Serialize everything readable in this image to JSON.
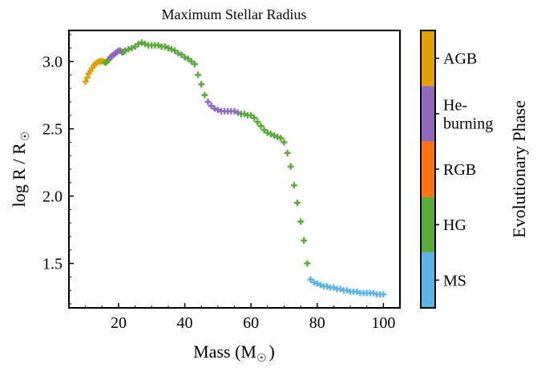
{
  "chart_data": {
    "type": "scatter",
    "title": "Maximum Stellar Radius",
    "xlabel_main": "Mass (M",
    "xlabel_sub": "☉",
    "xlabel_end": ")",
    "ylabel_main": "log R / R",
    "ylabel_sub": "☉",
    "xlim": [
      5,
      105
    ],
    "ylim": [
      1.17,
      3.23
    ],
    "xticks": [
      {
        "value": 20,
        "label": "20"
      },
      {
        "value": 40,
        "label": "40"
      },
      {
        "value": 60,
        "label": "60"
      },
      {
        "value": 80,
        "label": "80"
      },
      {
        "value": 100,
        "label": "100"
      }
    ],
    "yticks": [
      {
        "value": 1.5,
        "label": "1.5"
      },
      {
        "value": 2.0,
        "label": "2.0"
      },
      {
        "value": 2.5,
        "label": "2.5"
      },
      {
        "value": 3.0,
        "label": "3.0"
      }
    ],
    "marker": "plus",
    "grid": false,
    "colorbar": {
      "label": "Evolutionary Phase",
      "phases": [
        {
          "name": "MS",
          "label_lines": [
            "MS"
          ],
          "color": "#5bb5ea"
        },
        {
          "name": "HG",
          "label_lines": [
            "HG"
          ],
          "color": "#5aaa3a"
        },
        {
          "name": "RGB",
          "label_lines": [
            "RGB"
          ],
          "color": "#ff7411"
        },
        {
          "name": "He-burning",
          "label_lines": [
            "He-",
            "burning"
          ],
          "color": "#9068c0"
        },
        {
          "name": "AGB",
          "label_lines": [
            "AGB"
          ],
          "color": "#e49f00"
        }
      ]
    },
    "points": [
      {
        "x": 10.0,
        "y": 2.85,
        "phase": "AGB"
      },
      {
        "x": 10.5,
        "y": 2.88,
        "phase": "AGB"
      },
      {
        "x": 11.0,
        "y": 2.91,
        "phase": "AGB"
      },
      {
        "x": 11.5,
        "y": 2.93,
        "phase": "AGB"
      },
      {
        "x": 12.0,
        "y": 2.95,
        "phase": "AGB"
      },
      {
        "x": 12.5,
        "y": 2.97,
        "phase": "AGB"
      },
      {
        "x": 13.0,
        "y": 2.98,
        "phase": "AGB"
      },
      {
        "x": 13.5,
        "y": 2.99,
        "phase": "AGB"
      },
      {
        "x": 14.0,
        "y": 3.0,
        "phase": "AGB"
      },
      {
        "x": 14.5,
        "y": 3.0,
        "phase": "AGB"
      },
      {
        "x": 15.0,
        "y": 3.0,
        "phase": "AGB"
      },
      {
        "x": 15.5,
        "y": 3.0,
        "phase": "AGB"
      },
      {
        "x": 16.0,
        "y": 2.99,
        "phase": "HG"
      },
      {
        "x": 16.5,
        "y": 3.0,
        "phase": "HG"
      },
      {
        "x": 17.0,
        "y": 3.01,
        "phase": "HG"
      },
      {
        "x": 17.5,
        "y": 3.03,
        "phase": "He-burning"
      },
      {
        "x": 18.0,
        "y": 3.04,
        "phase": "He-burning"
      },
      {
        "x": 18.5,
        "y": 3.05,
        "phase": "He-burning"
      },
      {
        "x": 19.0,
        "y": 3.06,
        "phase": "He-burning"
      },
      {
        "x": 19.5,
        "y": 3.07,
        "phase": "He-burning"
      },
      {
        "x": 20.0,
        "y": 3.08,
        "phase": "He-burning"
      },
      {
        "x": 20.5,
        "y": 3.08,
        "phase": "He-burning"
      },
      {
        "x": 21.0,
        "y": 3.07,
        "phase": "He-burning"
      },
      {
        "x": 21.5,
        "y": 3.07,
        "phase": "HG"
      },
      {
        "x": 22.0,
        "y": 3.08,
        "phase": "HG"
      },
      {
        "x": 23.0,
        "y": 3.09,
        "phase": "HG"
      },
      {
        "x": 24.0,
        "y": 3.1,
        "phase": "HG"
      },
      {
        "x": 25.0,
        "y": 3.11,
        "phase": "HG"
      },
      {
        "x": 26.0,
        "y": 3.13,
        "phase": "HG"
      },
      {
        "x": 27.0,
        "y": 3.14,
        "phase": "HG"
      },
      {
        "x": 28.0,
        "y": 3.13,
        "phase": "HG"
      },
      {
        "x": 29.0,
        "y": 3.12,
        "phase": "HG"
      },
      {
        "x": 30.0,
        "y": 3.12,
        "phase": "HG"
      },
      {
        "x": 31.0,
        "y": 3.12,
        "phase": "HG"
      },
      {
        "x": 32.0,
        "y": 3.12,
        "phase": "HG"
      },
      {
        "x": 33.0,
        "y": 3.11,
        "phase": "HG"
      },
      {
        "x": 34.0,
        "y": 3.11,
        "phase": "HG"
      },
      {
        "x": 35.0,
        "y": 3.1,
        "phase": "HG"
      },
      {
        "x": 36.0,
        "y": 3.09,
        "phase": "HG"
      },
      {
        "x": 37.0,
        "y": 3.08,
        "phase": "HG"
      },
      {
        "x": 38.0,
        "y": 3.06,
        "phase": "HG"
      },
      {
        "x": 39.0,
        "y": 3.05,
        "phase": "HG"
      },
      {
        "x": 40.0,
        "y": 3.03,
        "phase": "HG"
      },
      {
        "x": 41.0,
        "y": 3.02,
        "phase": "HG"
      },
      {
        "x": 42.0,
        "y": 3.0,
        "phase": "HG"
      },
      {
        "x": 43.0,
        "y": 2.98,
        "phase": "HG"
      },
      {
        "x": 44.0,
        "y": 2.9,
        "phase": "HG"
      },
      {
        "x": 45.0,
        "y": 2.83,
        "phase": "HG"
      },
      {
        "x": 46.0,
        "y": 2.75,
        "phase": "HG"
      },
      {
        "x": 47.0,
        "y": 2.7,
        "phase": "He-burning"
      },
      {
        "x": 48.0,
        "y": 2.67,
        "phase": "He-burning"
      },
      {
        "x": 49.0,
        "y": 2.65,
        "phase": "He-burning"
      },
      {
        "x": 50.0,
        "y": 2.64,
        "phase": "He-burning"
      },
      {
        "x": 51.0,
        "y": 2.63,
        "phase": "He-burning"
      },
      {
        "x": 52.0,
        "y": 2.63,
        "phase": "He-burning"
      },
      {
        "x": 53.0,
        "y": 2.63,
        "phase": "He-burning"
      },
      {
        "x": 54.0,
        "y": 2.63,
        "phase": "He-burning"
      },
      {
        "x": 55.0,
        "y": 2.63,
        "phase": "He-burning"
      },
      {
        "x": 56.0,
        "y": 2.62,
        "phase": "He-burning"
      },
      {
        "x": 57.0,
        "y": 2.61,
        "phase": "HG"
      },
      {
        "x": 58.0,
        "y": 2.61,
        "phase": "HG"
      },
      {
        "x": 59.0,
        "y": 2.6,
        "phase": "HG"
      },
      {
        "x": 60.0,
        "y": 2.6,
        "phase": "HG"
      },
      {
        "x": 61.0,
        "y": 2.58,
        "phase": "HG"
      },
      {
        "x": 62.0,
        "y": 2.55,
        "phase": "HG"
      },
      {
        "x": 63.0,
        "y": 2.52,
        "phase": "HG"
      },
      {
        "x": 64.0,
        "y": 2.49,
        "phase": "HG"
      },
      {
        "x": 65.0,
        "y": 2.47,
        "phase": "HG"
      },
      {
        "x": 66.0,
        "y": 2.46,
        "phase": "HG"
      },
      {
        "x": 67.0,
        "y": 2.45,
        "phase": "HG"
      },
      {
        "x": 68.0,
        "y": 2.44,
        "phase": "HG"
      },
      {
        "x": 69.0,
        "y": 2.43,
        "phase": "HG"
      },
      {
        "x": 70.0,
        "y": 2.4,
        "phase": "HG"
      },
      {
        "x": 71.0,
        "y": 2.32,
        "phase": "HG"
      },
      {
        "x": 72.0,
        "y": 2.22,
        "phase": "HG"
      },
      {
        "x": 73.0,
        "y": 2.08,
        "phase": "HG"
      },
      {
        "x": 74.0,
        "y": 1.95,
        "phase": "HG"
      },
      {
        "x": 75.0,
        "y": 1.81,
        "phase": "HG"
      },
      {
        "x": 76.0,
        "y": 1.67,
        "phase": "HG"
      },
      {
        "x": 77.0,
        "y": 1.5,
        "phase": "HG"
      },
      {
        "x": 78.0,
        "y": 1.38,
        "phase": "MS"
      },
      {
        "x": 79.0,
        "y": 1.36,
        "phase": "MS"
      },
      {
        "x": 80.0,
        "y": 1.35,
        "phase": "MS"
      },
      {
        "x": 81.0,
        "y": 1.34,
        "phase": "MS"
      },
      {
        "x": 82.0,
        "y": 1.33,
        "phase": "MS"
      },
      {
        "x": 83.0,
        "y": 1.33,
        "phase": "MS"
      },
      {
        "x": 84.0,
        "y": 1.32,
        "phase": "MS"
      },
      {
        "x": 85.0,
        "y": 1.32,
        "phase": "MS"
      },
      {
        "x": 86.0,
        "y": 1.31,
        "phase": "MS"
      },
      {
        "x": 87.0,
        "y": 1.31,
        "phase": "MS"
      },
      {
        "x": 88.0,
        "y": 1.3,
        "phase": "MS"
      },
      {
        "x": 89.0,
        "y": 1.3,
        "phase": "MS"
      },
      {
        "x": 90.0,
        "y": 1.29,
        "phase": "MS"
      },
      {
        "x": 91.0,
        "y": 1.29,
        "phase": "MS"
      },
      {
        "x": 92.0,
        "y": 1.29,
        "phase": "MS"
      },
      {
        "x": 93.0,
        "y": 1.28,
        "phase": "MS"
      },
      {
        "x": 94.0,
        "y": 1.28,
        "phase": "MS"
      },
      {
        "x": 95.0,
        "y": 1.28,
        "phase": "MS"
      },
      {
        "x": 96.0,
        "y": 1.28,
        "phase": "MS"
      },
      {
        "x": 97.0,
        "y": 1.28,
        "phase": "MS"
      },
      {
        "x": 98.0,
        "y": 1.27,
        "phase": "MS"
      },
      {
        "x": 99.0,
        "y": 1.27,
        "phase": "MS"
      },
      {
        "x": 100.0,
        "y": 1.27,
        "phase": "MS"
      }
    ]
  }
}
